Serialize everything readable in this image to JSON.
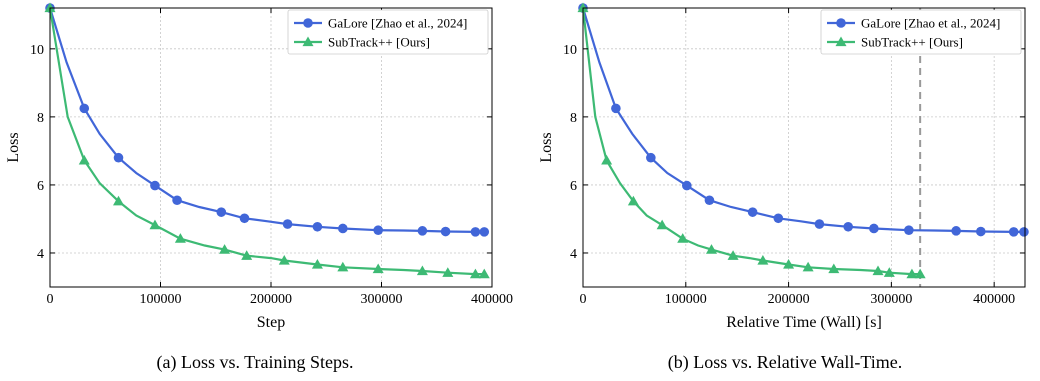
{
  "captions": {
    "a": "(a) Loss vs. Training Steps.",
    "b": "(b) Loss vs. Relative Wall-Time."
  },
  "colors": {
    "galore": "#4166d8",
    "subtrack": "#3dba74",
    "vline": "#999999",
    "grid": "#c8c8c8"
  },
  "chart_data": [
    {
      "type": "line",
      "xlabel": "Step",
      "ylabel": "Loss",
      "xlim": [
        0,
        400000
      ],
      "ylim": [
        3.0,
        11.2
      ],
      "xticks": [
        0,
        100000,
        200000,
        300000,
        400000
      ],
      "xtick_labels": [
        "0",
        "100000",
        "200000",
        "300000",
        "400000"
      ],
      "yticks": [
        4,
        6,
        8,
        10
      ],
      "ytick_labels": [
        "4",
        "6",
        "8",
        "10"
      ],
      "grid": true,
      "legend": "top-right",
      "series": [
        {
          "name": "GaLore [Zhao et al., 2024]",
          "marker": "circle",
          "color": "#4166d8",
          "x": [
            0,
            15000,
            31000,
            45000,
            62000,
            78000,
            95000,
            115000,
            135000,
            155000,
            176000,
            197000,
            215000,
            242000,
            265000,
            297000,
            320000,
            337000,
            358000,
            385000,
            393000
          ],
          "y": [
            11.2,
            9.6,
            8.25,
            7.5,
            6.8,
            6.35,
            5.98,
            5.55,
            5.35,
            5.2,
            5.02,
            4.93,
            4.85,
            4.77,
            4.72,
            4.67,
            4.66,
            4.65,
            4.63,
            4.62,
            4.62
          ],
          "marker_indices": [
            0,
            2,
            4,
            6,
            7,
            9,
            10,
            12,
            13,
            14,
            15,
            17,
            18,
            19,
            20
          ]
        },
        {
          "name": "SubTrack++ [Ours]",
          "marker": "triangle",
          "color": "#3dba74",
          "x": [
            0,
            16000,
            31000,
            45000,
            62000,
            78000,
            95000,
            118000,
            140000,
            158000,
            178000,
            200000,
            212000,
            242000,
            265000,
            297000,
            320000,
            337000,
            360000,
            385000,
            393000
          ],
          "y": [
            11.2,
            8.0,
            6.72,
            6.05,
            5.52,
            5.1,
            4.82,
            4.42,
            4.22,
            4.1,
            3.92,
            3.85,
            3.78,
            3.66,
            3.58,
            3.53,
            3.5,
            3.47,
            3.42,
            3.38,
            3.38
          ],
          "marker_indices": [
            0,
            2,
            4,
            6,
            7,
            9,
            10,
            12,
            13,
            14,
            15,
            17,
            18,
            19,
            20
          ]
        }
      ]
    },
    {
      "type": "line",
      "xlabel": "Relative Time (Wall) [s]",
      "ylabel": "Loss",
      "xlim": [
        0,
        430000
      ],
      "ylim": [
        3.0,
        11.2
      ],
      "xticks": [
        0,
        100000,
        200000,
        300000,
        400000
      ],
      "xtick_labels": [
        "0",
        "100000",
        "200000",
        "300000",
        "400000"
      ],
      "yticks": [
        4,
        6,
        8,
        10
      ],
      "ytick_labels": [
        "4",
        "6",
        "8",
        "10"
      ],
      "grid": true,
      "legend": "top-right",
      "vline_x": 328000,
      "series": [
        {
          "name": "GaLore [Zhao et al., 2024]",
          "marker": "circle",
          "color": "#4166d8",
          "x": [
            0,
            16000,
            32000,
            48000,
            66000,
            82000,
            101000,
            123000,
            144000,
            165000,
            190000,
            212000,
            230000,
            258000,
            283000,
            317000,
            342000,
            363000,
            387000,
            419000,
            429000
          ],
          "y": [
            11.2,
            9.6,
            8.25,
            7.5,
            6.8,
            6.35,
            5.98,
            5.55,
            5.35,
            5.2,
            5.02,
            4.93,
            4.85,
            4.77,
            4.72,
            4.67,
            4.66,
            4.65,
            4.63,
            4.62,
            4.62
          ],
          "marker_indices": [
            0,
            2,
            4,
            6,
            7,
            9,
            10,
            12,
            13,
            14,
            15,
            17,
            18,
            19,
            20
          ]
        },
        {
          "name": "SubTrack++ [Ours]",
          "marker": "triangle",
          "color": "#3dba74",
          "x": [
            0,
            12000,
            23000,
            36000,
            49000,
            62000,
            77000,
            97000,
            112000,
            125000,
            146000,
            162000,
            175000,
            200000,
            219000,
            244000,
            270000,
            287000,
            298000,
            320000,
            328000
          ],
          "y": [
            11.2,
            8.0,
            6.72,
            6.05,
            5.52,
            5.1,
            4.82,
            4.42,
            4.22,
            4.1,
            3.92,
            3.85,
            3.78,
            3.66,
            3.58,
            3.53,
            3.5,
            3.47,
            3.42,
            3.38,
            3.38
          ],
          "marker_indices": [
            0,
            2,
            4,
            6,
            7,
            9,
            10,
            12,
            13,
            14,
            15,
            17,
            18,
            19,
            20
          ]
        }
      ]
    }
  ]
}
